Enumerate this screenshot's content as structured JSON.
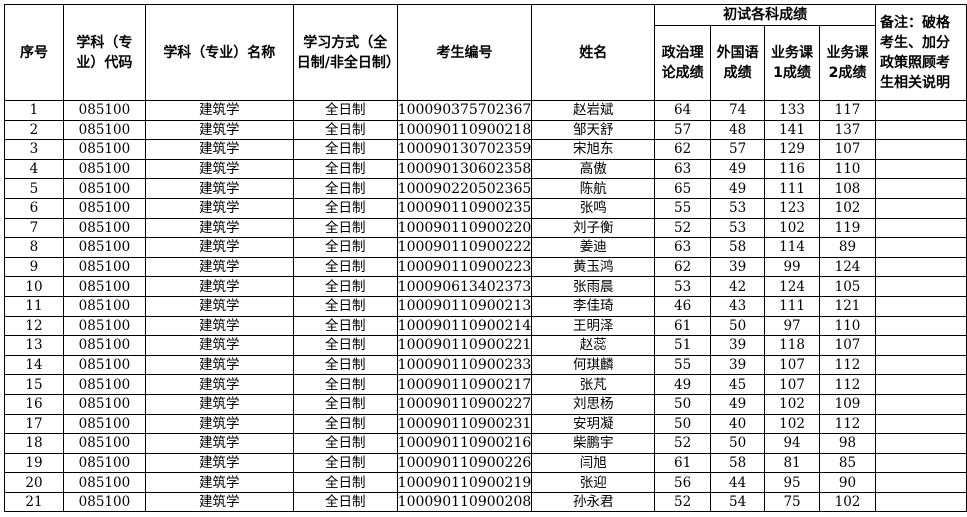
{
  "headers": {
    "seq": "序号",
    "code": "学科（专业）代码",
    "name": "学科（专业）名称",
    "mode": "学习方式（全日制/非全日制）",
    "exam_id": "考生编号",
    "student_name": "姓名",
    "scores_group": "初试各科成绩",
    "politics": "政治理论成绩",
    "foreign": "外国语成绩",
    "course1": "业务课1成绩",
    "course2": "业务课2成绩",
    "note": "备注：破格考生、加分政策照顾考生相关说明"
  },
  "rows": [
    [
      "1",
      "085100",
      "建筑学",
      "全日制",
      "100090375702367",
      "赵岩斌",
      "64",
      "74",
      "133",
      "117",
      ""
    ],
    [
      "2",
      "085100",
      "建筑学",
      "全日制",
      "100090110900218",
      "邹天舒",
      "57",
      "48",
      "141",
      "137",
      ""
    ],
    [
      "3",
      "085100",
      "建筑学",
      "全日制",
      "100090130702359",
      "宋旭东",
      "62",
      "57",
      "129",
      "107",
      ""
    ],
    [
      "4",
      "085100",
      "建筑学",
      "全日制",
      "100090130602358",
      "高傲",
      "63",
      "49",
      "116",
      "110",
      ""
    ],
    [
      "5",
      "085100",
      "建筑学",
      "全日制",
      "100090220502365",
      "陈航",
      "65",
      "49",
      "111",
      "108",
      ""
    ],
    [
      "6",
      "085100",
      "建筑学",
      "全日制",
      "100090110900235",
      "张鸣",
      "55",
      "53",
      "123",
      "102",
      ""
    ],
    [
      "7",
      "085100",
      "建筑学",
      "全日制",
      "100090110900220",
      "刘子衡",
      "52",
      "53",
      "102",
      "119",
      ""
    ],
    [
      "8",
      "085100",
      "建筑学",
      "全日制",
      "100090110900222",
      "姜迪",
      "63",
      "58",
      "114",
      "89",
      ""
    ],
    [
      "9",
      "085100",
      "建筑学",
      "全日制",
      "100090110900223",
      "黄玉鸿",
      "62",
      "39",
      "99",
      "124",
      ""
    ],
    [
      "10",
      "085100",
      "建筑学",
      "全日制",
      "100090613402373",
      "张雨晨",
      "53",
      "42",
      "124",
      "105",
      ""
    ],
    [
      "11",
      "085100",
      "建筑学",
      "全日制",
      "100090110900213",
      "李佳琦",
      "46",
      "43",
      "111",
      "121",
      ""
    ],
    [
      "12",
      "085100",
      "建筑学",
      "全日制",
      "100090110900214",
      "王明泽",
      "61",
      "50",
      "97",
      "110",
      ""
    ],
    [
      "13",
      "085100",
      "建筑学",
      "全日制",
      "100090110900221",
      "赵蕊",
      "51",
      "39",
      "118",
      "107",
      ""
    ],
    [
      "14",
      "085100",
      "建筑学",
      "全日制",
      "100090110900233",
      "何琪麟",
      "55",
      "39",
      "107",
      "112",
      ""
    ],
    [
      "15",
      "085100",
      "建筑学",
      "全日制",
      "100090110900217",
      "张芃",
      "49",
      "45",
      "107",
      "112",
      ""
    ],
    [
      "16",
      "085100",
      "建筑学",
      "全日制",
      "100090110900227",
      "刘思杨",
      "50",
      "49",
      "102",
      "109",
      ""
    ],
    [
      "17",
      "085100",
      "建筑学",
      "全日制",
      "100090110900231",
      "安玥凝",
      "50",
      "40",
      "102",
      "112",
      ""
    ],
    [
      "18",
      "085100",
      "建筑学",
      "全日制",
      "100090110900216",
      "柴鹏宇",
      "52",
      "50",
      "94",
      "98",
      ""
    ],
    [
      "19",
      "085100",
      "建筑学",
      "全日制",
      "100090110900226",
      "闫旭",
      "61",
      "58",
      "81",
      "85",
      ""
    ],
    [
      "20",
      "085100",
      "建筑学",
      "全日制",
      "100090110900219",
      "张迎",
      "56",
      "44",
      "95",
      "90",
      ""
    ],
    [
      "21",
      "085100",
      "建筑学",
      "全日制",
      "100090110900208",
      "孙永君",
      "52",
      "54",
      "75",
      "102",
      ""
    ]
  ]
}
